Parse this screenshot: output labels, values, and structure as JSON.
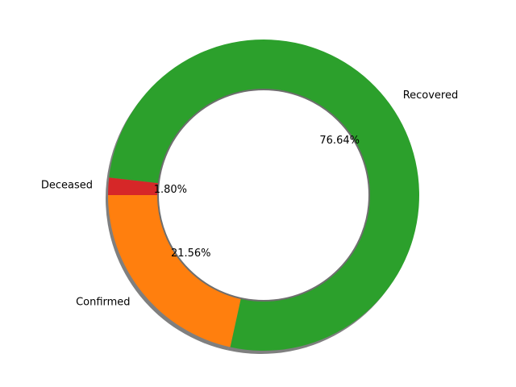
{
  "chart_data": {
    "type": "pie",
    "variant": "donut",
    "title": "",
    "shadow": true,
    "start_angle_deg": 180,
    "direction": "counterclockwise",
    "slices": [
      {
        "label": "Confirmed",
        "value": 21.56,
        "pct_label": "21.56%",
        "color": "#ff7f0e"
      },
      {
        "label": "Recovered",
        "value": 76.64,
        "pct_label": "76.64%",
        "color": "#2ca02c"
      },
      {
        "label": "Deceased",
        "value": 1.8,
        "pct_label": "1.80%",
        "color": "#d62728"
      }
    ]
  }
}
